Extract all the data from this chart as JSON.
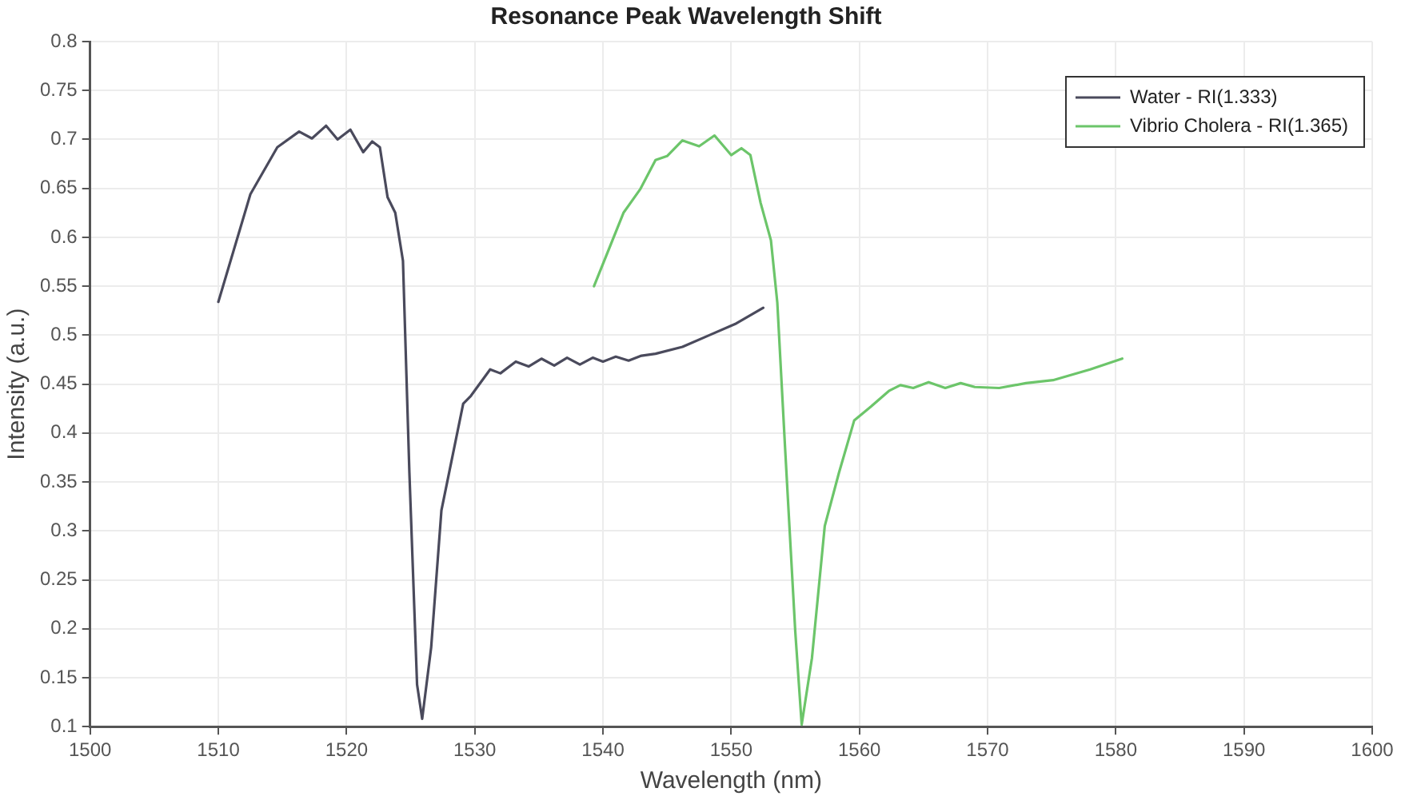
{
  "chart_data": {
    "type": "line",
    "title": "Resonance Peak Wavelength Shift",
    "xlabel": "Wavelength (nm)",
    "ylabel": "Intensity (a.u.)",
    "xlim": [
      1500,
      1600
    ],
    "xticks": [
      1500,
      1510,
      1520,
      1530,
      1540,
      1550,
      1560,
      1570,
      1580,
      1590,
      1600
    ],
    "ylim": [
      0.1,
      0.8
    ],
    "yticks": [
      0.1,
      0.15,
      0.2,
      0.25,
      0.3,
      0.35,
      0.4,
      0.45,
      0.5,
      0.55,
      0.6,
      0.65,
      0.7,
      0.75,
      0.8
    ],
    "grid": true,
    "legend": "top right",
    "marker": "none",
    "line_style": "solid",
    "series": [
      {
        "name": "Water - RI(1.333)",
        "color": "#4a4a5c",
        "x": [
          1510.0,
          1512.5,
          1514.6,
          1516.3,
          1517.3,
          1518.4,
          1519.3,
          1520.3,
          1521.3,
          1522.0,
          1522.6,
          1523.2,
          1523.8,
          1524.4,
          1524.9,
          1525.5,
          1525.9,
          1526.6,
          1527.4,
          1529.1,
          1529.7,
          1531.2,
          1532.0,
          1533.2,
          1534.2,
          1535.2,
          1536.2,
          1537.2,
          1538.2,
          1539.2,
          1540.0,
          1541.0,
          1542.0,
          1543.0,
          1544.1,
          1546.2,
          1548.3,
          1550.4,
          1552.5
        ],
        "values": [
          0.534,
          0.644,
          0.692,
          0.708,
          0.701,
          0.714,
          0.7,
          0.71,
          0.687,
          0.698,
          0.692,
          0.641,
          0.625,
          0.576,
          0.36,
          0.143,
          0.108,
          0.181,
          0.321,
          0.43,
          0.438,
          0.465,
          0.461,
          0.473,
          0.468,
          0.476,
          0.469,
          0.477,
          0.47,
          0.477,
          0.473,
          0.478,
          0.474,
          0.479,
          0.481,
          0.488,
          0.5,
          0.512,
          0.528
        ]
      },
      {
        "name": "Vibrio Cholera - RI(1.365)",
        "color": "#6cc56a",
        "x": [
          1539.3,
          1541.6,
          1542.9,
          1544.1,
          1545.0,
          1546.2,
          1547.5,
          1548.7,
          1550.0,
          1550.8,
          1551.5,
          1552.3,
          1553.1,
          1553.6,
          1554.2,
          1555.0,
          1555.5,
          1556.3,
          1557.3,
          1558.4,
          1559.6,
          1560.9,
          1562.3,
          1563.2,
          1564.2,
          1565.4,
          1566.7,
          1567.9,
          1569.0,
          1570.9,
          1573.0,
          1575.1,
          1578.0,
          1580.5
        ],
        "values": [
          0.55,
          0.625,
          0.649,
          0.679,
          0.683,
          0.699,
          0.693,
          0.704,
          0.684,
          0.691,
          0.684,
          0.635,
          0.597,
          0.533,
          0.386,
          0.197,
          0.102,
          0.17,
          0.305,
          0.359,
          0.413,
          0.427,
          0.443,
          0.449,
          0.446,
          0.452,
          0.446,
          0.451,
          0.447,
          0.446,
          0.451,
          0.454,
          0.465,
          0.476
        ]
      }
    ]
  }
}
